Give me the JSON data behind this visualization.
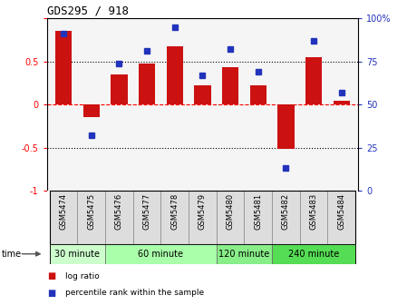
{
  "title": "GDS295 / 918",
  "samples": [
    "GSM5474",
    "GSM5475",
    "GSM5476",
    "GSM5477",
    "GSM5478",
    "GSM5479",
    "GSM5480",
    "GSM5481",
    "GSM5482",
    "GSM5483",
    "GSM5484"
  ],
  "log_ratio": [
    0.85,
    -0.15,
    0.35,
    0.48,
    0.68,
    0.22,
    0.43,
    0.22,
    -0.52,
    0.55,
    0.04
  ],
  "percentile": [
    91,
    32,
    74,
    81,
    95,
    67,
    82,
    69,
    13,
    87,
    57
  ],
  "groups": [
    {
      "label": "30 minute",
      "start": 0,
      "end": 2,
      "color": "#ccffcc"
    },
    {
      "label": "60 minute",
      "start": 2,
      "end": 6,
      "color": "#aaffaa"
    },
    {
      "label": "120 minute",
      "start": 6,
      "end": 8,
      "color": "#88ee88"
    },
    {
      "label": "240 minute",
      "start": 8,
      "end": 11,
      "color": "#55dd55"
    }
  ],
  "bar_color": "#cc1111",
  "dot_color": "#2233bb",
  "ylim_left": [
    -1,
    1
  ],
  "ylim_right": [
    0,
    100
  ],
  "yticks_left": [
    -1,
    -0.5,
    0,
    0.5,
    1
  ],
  "yticks_right": [
    0,
    25,
    50,
    75,
    100
  ],
  "background_color": "#ffffff",
  "plot_bg_color": "#f5f5f5",
  "label_bg_color": "#dddddd",
  "time_label": "time",
  "legend_items": [
    {
      "label": "log ratio",
      "color": "#cc1111"
    },
    {
      "label": "percentile rank within the sample",
      "color": "#2233bb"
    }
  ]
}
